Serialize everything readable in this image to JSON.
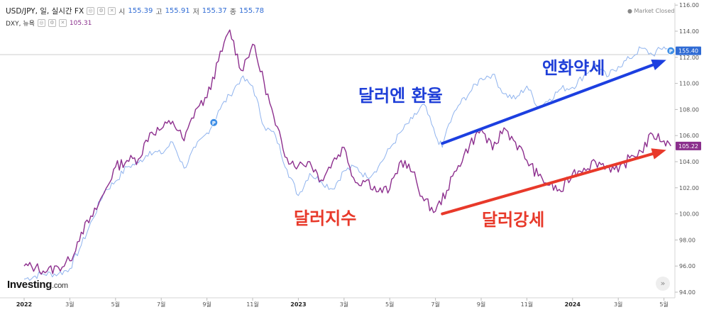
{
  "header": {
    "pair": "USD/JPY, 일, 실시간 FX",
    "open_label": "시",
    "open_value": "155.39",
    "high_label": "고",
    "high_value": "155.91",
    "low_label": "저",
    "low_value": "155.37",
    "close_label": "종",
    "close_value": "155.78",
    "dxy_name": "DXY, 뉴욕",
    "dxy_value": "105.31"
  },
  "market_status": "Market Closed",
  "logo": {
    "brand": "Investing",
    "suffix": ".com"
  },
  "icons": {
    "nav": "double-chevron-right-icon",
    "marker": "p-marker-icon"
  },
  "colors": {
    "usdjpy": "#8fb3ee",
    "dxy": "#8d2f8e",
    "blue_arrow": "#1c3fe0",
    "red_arrow": "#e8392a",
    "blue_text": "#1f3fd8",
    "red_text": "#e8392a"
  },
  "annotations": {
    "blue_top": "엔화약세",
    "blue_mid": "달러엔 환율",
    "red_mid": "달러지수",
    "red_right": "달러강세"
  },
  "chart_data": {
    "type": "line",
    "x_ticks": [
      "2022",
      "3월",
      "5월",
      "7월",
      "9월",
      "11월",
      "2023",
      "3월",
      "5월",
      "7월",
      "9월",
      "11월",
      "2024",
      "3월",
      "5월"
    ],
    "y_ticks": [
      "94.00",
      "96.00",
      "98.00",
      "100.00",
      "102.00",
      "104.00",
      "106.00",
      "108.00",
      "110.00",
      "112.00",
      "114.00",
      "116.00"
    ],
    "ylim": [
      94,
      116
    ],
    "price_tags": [
      {
        "series": "USD/JPY",
        "value": "155.40",
        "color": "#2f6bd4"
      },
      {
        "series": "DXY",
        "value": "105.22",
        "color": "#8a2f8c"
      }
    ],
    "series": [
      {
        "name": "USD/JPY",
        "scale": "USD/JPY price (tag 155.40 at 112.51)",
        "t": [
          0,
          0.8,
          1.5,
          2.0,
          2.5,
          3.0,
          3.5,
          4.0,
          4.5,
          5.0,
          5.5,
          6.0,
          6.5,
          7.0,
          7.5,
          8.0,
          8.3,
          8.5,
          9.0,
          9.5,
          10.0,
          10.5,
          11.0,
          11.5,
          12.0,
          12.5,
          13.0,
          13.5,
          14.0,
          14.5,
          15.0,
          15.5,
          16.0,
          16.5,
          17.0,
          17.5,
          18.0,
          18.3,
          18.5,
          19.0,
          19.5,
          20.0,
          20.5,
          21.0,
          21.5,
          22.0,
          22.5,
          23.0,
          23.5,
          24.0,
          24.5,
          25.0,
          25.5,
          26.0,
          26.5,
          27.0,
          27.5,
          28.0,
          28.3
        ],
        "values": [
          95.0,
          95.4,
          95.4,
          95.8,
          97.6,
          99.6,
          101.7,
          102.5,
          103.6,
          103.9,
          104.8,
          104.6,
          105.5,
          103.5,
          105.1,
          106.2,
          107.0,
          107.9,
          109.1,
          110.4,
          109.8,
          106.7,
          106.0,
          103.4,
          101.4,
          103.1,
          102.5,
          101.9,
          103.3,
          103.6,
          102.8,
          103.6,
          105.0,
          106.3,
          107.3,
          108.4,
          106.0,
          105.1,
          106.5,
          108.3,
          109.3,
          110.4,
          110.7,
          109.2,
          108.8,
          109.8,
          108.2,
          108.8,
          109.6,
          109.7,
          110.6,
          111.5,
          110.5,
          111.3,
          111.9,
          112.7,
          112.2,
          112.8,
          112.5
        ]
      },
      {
        "name": "DXY",
        "scale": "DXY index",
        "t": [
          0,
          0.5,
          1.0,
          1.5,
          2.0,
          2.5,
          3.0,
          3.5,
          4.0,
          4.5,
          5.0,
          5.5,
          6.0,
          6.5,
          7.0,
          7.5,
          8.0,
          8.5,
          9.0,
          9.5,
          10.0,
          10.5,
          11.0,
          11.5,
          12.0,
          12.5,
          13.0,
          13.5,
          14.0,
          14.5,
          15.0,
          15.5,
          16.0,
          16.5,
          17.0,
          17.5,
          18.0,
          18.5,
          19.0,
          19.5,
          20.0,
          20.5,
          21.0,
          21.5,
          22.0,
          22.5,
          23.0,
          23.5,
          24.0,
          24.5,
          25.0,
          25.5,
          26.0,
          26.5,
          27.0,
          27.5,
          28.0,
          28.3
        ],
        "values": [
          96.0,
          95.9,
          95.6,
          95.9,
          96.4,
          98.6,
          99.8,
          101.6,
          103.6,
          104.1,
          104.2,
          106.2,
          106.5,
          107.1,
          105.6,
          108.0,
          108.9,
          111.7,
          114.1,
          111.0,
          113.0,
          110.1,
          106.8,
          104.3,
          103.7,
          104.0,
          102.6,
          104.0,
          105.1,
          102.4,
          102.6,
          101.7,
          101.9,
          104.1,
          103.2,
          101.0,
          100.2,
          101.8,
          103.7,
          105.3,
          106.5,
          104.9,
          106.6,
          105.5,
          104.1,
          102.9,
          102.2,
          101.7,
          103.1,
          103.5,
          104.0,
          103.7,
          103.2,
          104.3,
          104.8,
          106.1,
          105.6,
          105.2
        ]
      }
    ],
    "markers": [
      {
        "series": "USD/JPY",
        "t": 8.3,
        "label": "P"
      },
      {
        "series": "USD/JPY",
        "t": 28.3,
        "label": "P"
      }
    ],
    "arrows": [
      {
        "color": "blue",
        "from": [
          18.3,
          105.4
        ],
        "to": [
          28.1,
          111.8
        ]
      },
      {
        "color": "red",
        "from": [
          18.3,
          100.0
        ],
        "to": [
          28.1,
          104.9
        ]
      }
    ]
  }
}
